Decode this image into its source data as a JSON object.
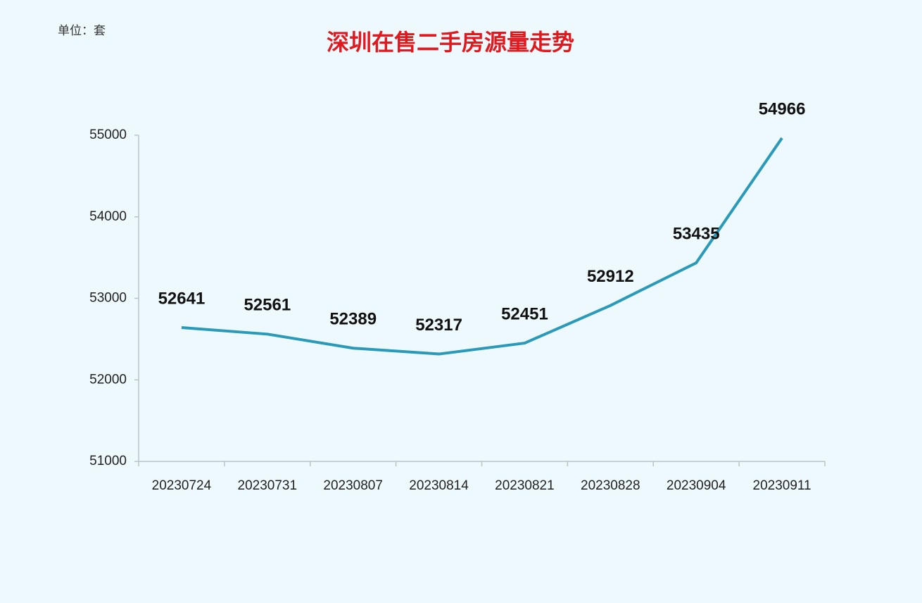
{
  "chart_data": {
    "type": "line",
    "title": "深圳在售二手房源量走势",
    "unit_label": "单位：套",
    "categories": [
      "20230724",
      "20230731",
      "20230807",
      "20230814",
      "20230821",
      "20230828",
      "20230904",
      "20230911"
    ],
    "values": [
      52641,
      52561,
      52389,
      52317,
      52451,
      52912,
      53435,
      54966
    ],
    "color": "#2b9ab8",
    "title_color": "#e0191e",
    "ylim": [
      51000,
      55000
    ],
    "yticks": [
      51000,
      52000,
      53000,
      54000,
      55000
    ],
    "grid": false
  }
}
